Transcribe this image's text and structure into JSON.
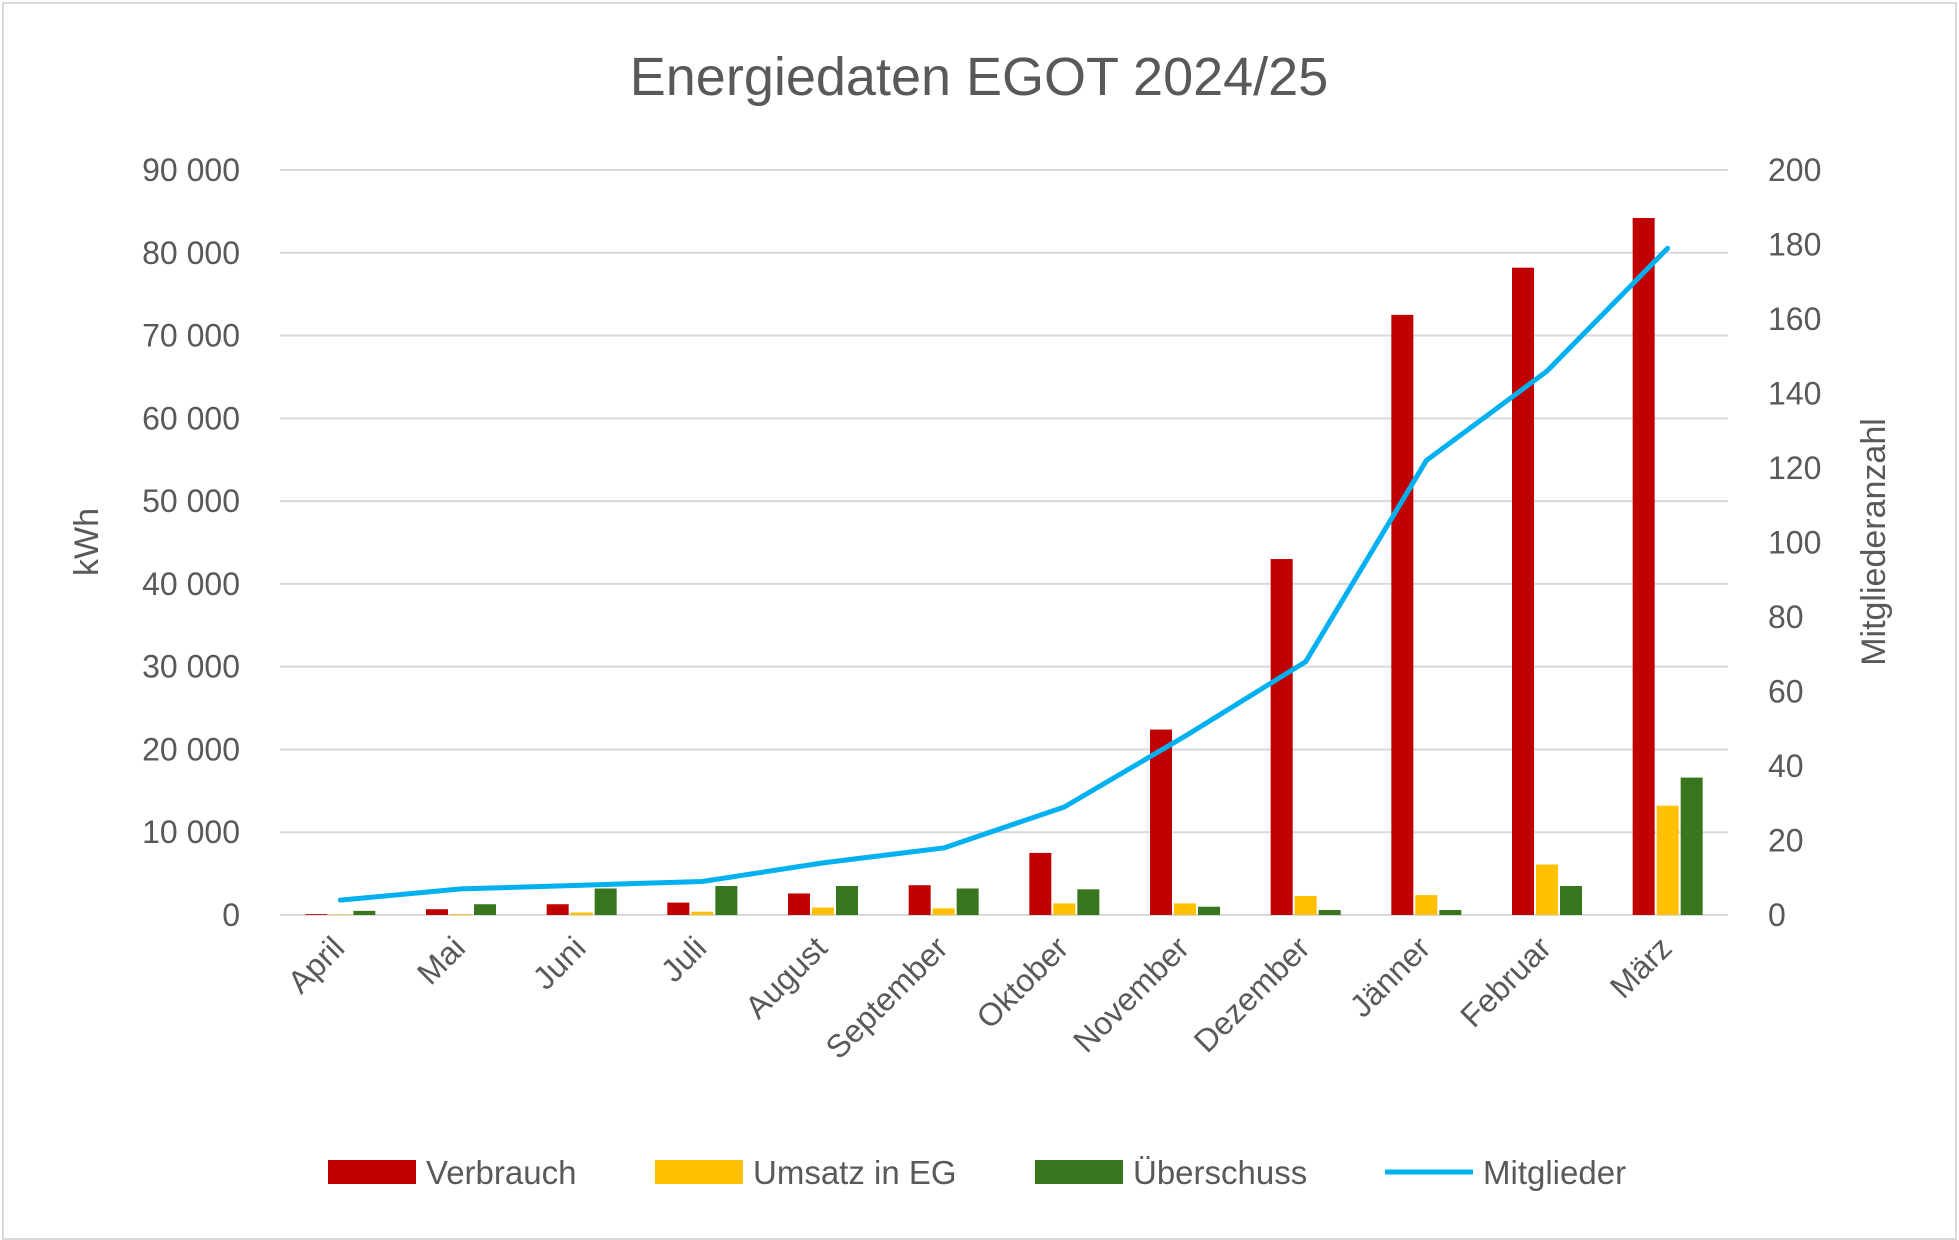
{
  "chart_data": {
    "type": "bar",
    "title": "Energiedaten EGOT 2024/25",
    "categories": [
      "April",
      "Mai",
      "Juni",
      "Juli",
      "August",
      "September",
      "Oktober",
      "November",
      "Dezember",
      "Jänner",
      "Februar",
      "März"
    ],
    "ylabel": "kWh",
    "y2label": "Mitgliederanzahl",
    "ylim": [
      0,
      90000
    ],
    "y2lim": [
      0,
      200
    ],
    "yticks": [
      "0",
      "10 000",
      "20 000",
      "30 000",
      "40 000",
      "50 000",
      "60 000",
      "70 000",
      "80 000",
      "90 000"
    ],
    "y2ticks": [
      "0",
      "20",
      "40",
      "60",
      "80",
      "100",
      "120",
      "140",
      "160",
      "180",
      "200"
    ],
    "grid": true,
    "legend_position": "bottom",
    "series": [
      {
        "name": "Verbrauch",
        "type": "bar",
        "axis": "left",
        "color": "#c00000",
        "values": [
          100,
          700,
          1300,
          1500,
          2600,
          3600,
          7500,
          22400,
          43000,
          72500,
          78200,
          84200
        ]
      },
      {
        "name": "Umsatz in EG",
        "type": "bar",
        "axis": "left",
        "color": "#ffc000",
        "values": [
          50,
          100,
          300,
          400,
          900,
          800,
          1400,
          1400,
          2300,
          2400,
          6100,
          13200
        ]
      },
      {
        "name": "Überschuss",
        "type": "bar",
        "axis": "left",
        "color": "#38761d",
        "values": [
          500,
          1300,
          3200,
          3500,
          3500,
          3200,
          3100,
          1000,
          600,
          600,
          3500,
          16600
        ]
      },
      {
        "name": "Mitglieder",
        "type": "line",
        "axis": "right",
        "color": "#00b0f0",
        "values": [
          4,
          7,
          8,
          9,
          14,
          18,
          29,
          48,
          68,
          122,
          146,
          179
        ]
      }
    ]
  }
}
